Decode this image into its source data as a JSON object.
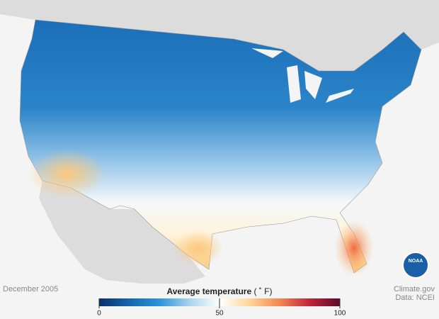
{
  "map": {
    "date": "December 2005",
    "logo": "NOAA"
  },
  "legend": {
    "title": "Average temperature",
    "unit": "( ˚ F)",
    "range": [
      0,
      100
    ],
    "ticks": [
      0,
      50,
      100
    ],
    "colors": [
      "#08306b",
      "#1565b0",
      "#2a94d8",
      "#a9d2ee",
      "#ffffff",
      "#fdd79a",
      "#f4864f",
      "#c0243a",
      "#5c0a2a"
    ]
  },
  "credits": [
    "Climate.gov",
    "Data: NCEI"
  ]
}
